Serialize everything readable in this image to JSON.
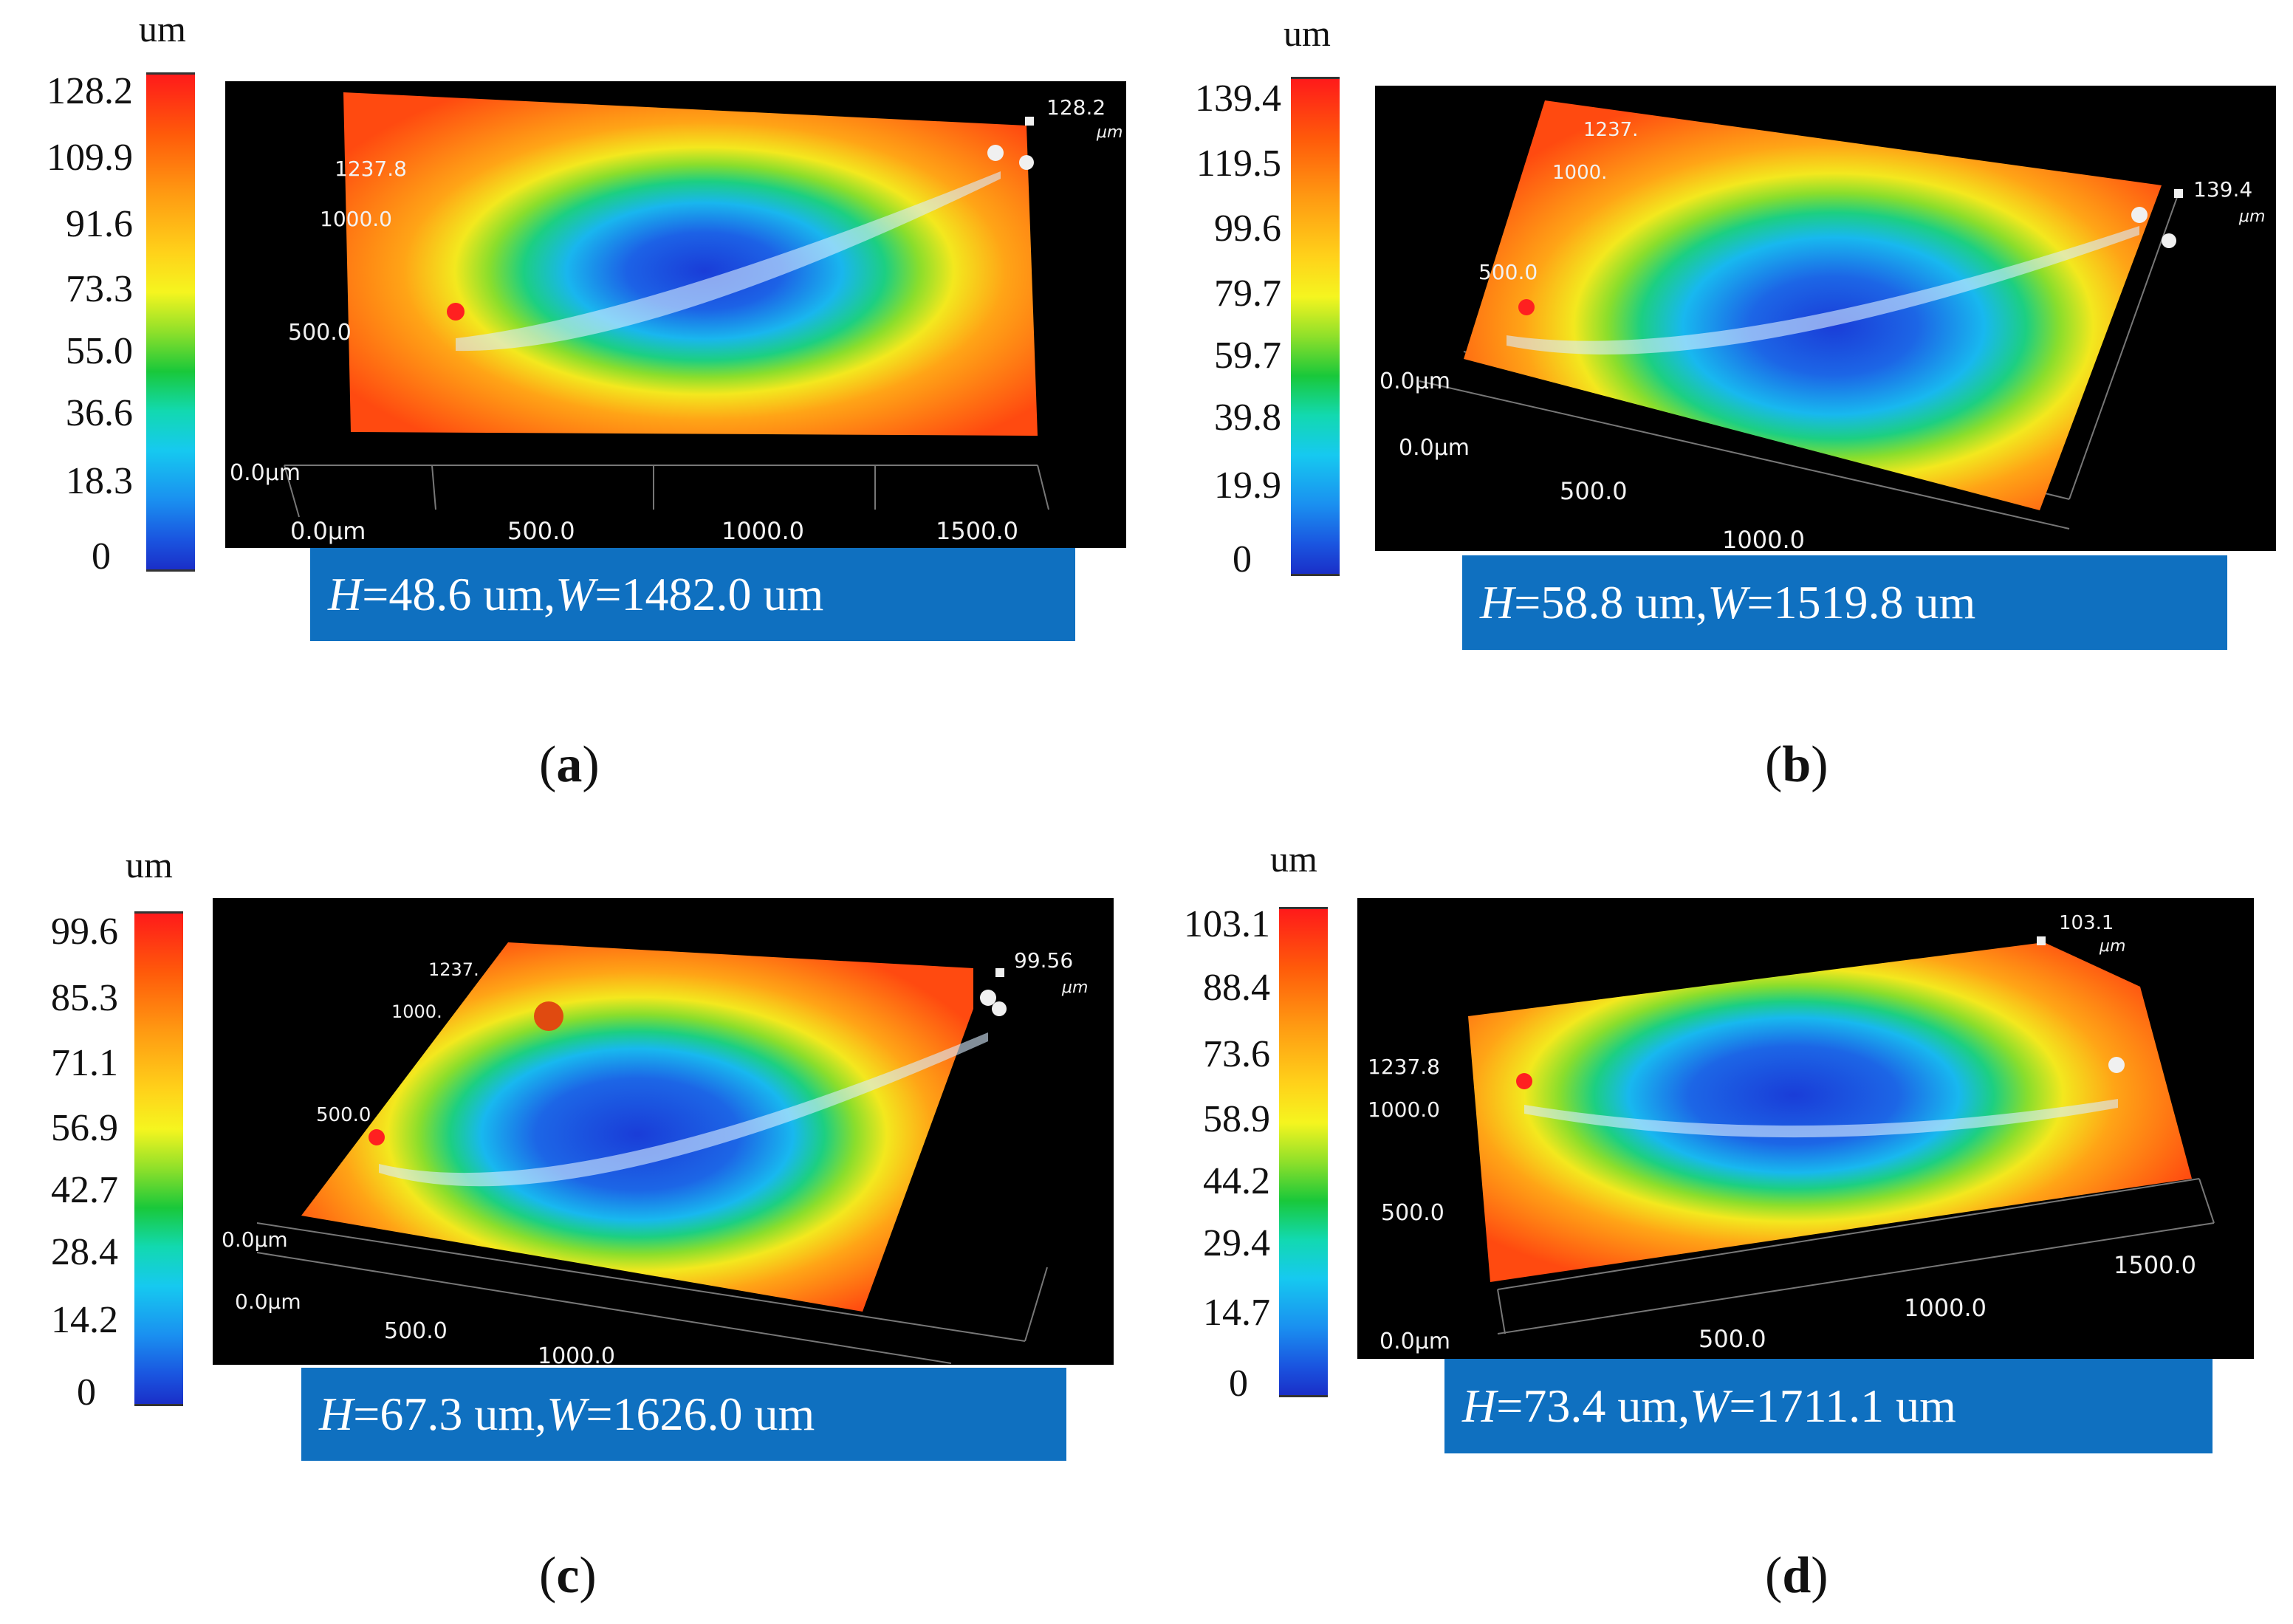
{
  "panels": [
    {
      "id": "a",
      "label": "a",
      "colorbar_unit": "um",
      "colorbar_ticks": [
        "128.2",
        "109.9",
        "91.6",
        "73.3",
        "55.0",
        "36.6",
        "18.3",
        "0"
      ],
      "max_label": "128.2",
      "max_unit": "μm",
      "y_labels": [
        "1237.8",
        "1000.0",
        "500.0",
        "0.0μm"
      ],
      "x_labels": [
        "0.0μm",
        "500.0",
        "1000.0",
        "1500.0"
      ],
      "caption": {
        "h_symbol": "H",
        "h_value": "=48.6 um, ",
        "w_symbol": "W",
        "w_value": "=1482.0 um"
      }
    },
    {
      "id": "b",
      "label": "b",
      "colorbar_unit": "um",
      "colorbar_ticks": [
        "139.4",
        "119.5",
        "99.6",
        "79.7",
        "59.7",
        "39.8",
        "19.9",
        "0"
      ],
      "max_label": "139.4",
      "max_unit": "μm",
      "y_labels": [
        "1237.",
        "1000.",
        "500.0",
        "0.0μm"
      ],
      "x_labels": [
        "0.0μm",
        "500.0",
        "1000.0"
      ],
      "caption": {
        "h_symbol": "H",
        "h_value": "=58.8 um, ",
        "w_symbol": "W",
        "w_value": "=1519.8 um"
      }
    },
    {
      "id": "c",
      "label": "c",
      "colorbar_unit": "um",
      "colorbar_ticks": [
        "99.6",
        "85.3",
        "71.1",
        "56.9",
        "42.7",
        "28.4",
        "14.2",
        "0"
      ],
      "max_label": "99.56",
      "max_unit": "μm",
      "y_labels": [
        "1237.",
        "1000.",
        "500.0",
        "0.0μm"
      ],
      "x_labels": [
        "0.0μm",
        "500.0",
        "1000.0"
      ],
      "caption": {
        "h_symbol": "H",
        "h_value": "=67.3 um, ",
        "w_symbol": "W",
        "w_value": "=1626.0 um"
      }
    },
    {
      "id": "d",
      "label": "d",
      "colorbar_unit": "um",
      "colorbar_ticks": [
        "103.1",
        "88.4",
        "73.6",
        "58.9",
        "44.2",
        "29.4",
        "14.7",
        "0"
      ],
      "max_label": "103.1",
      "max_unit": "μm",
      "y_labels": [
        "1237.8",
        "1000.0",
        "500.0",
        "0.0μm"
      ],
      "x_labels": [
        "500.0",
        "1000.0",
        "1500.0"
      ],
      "caption": {
        "h_symbol": "H",
        "h_value": "=73.4 um, ",
        "w_symbol": "W",
        "w_value": "=1711.1 um"
      }
    }
  ]
}
